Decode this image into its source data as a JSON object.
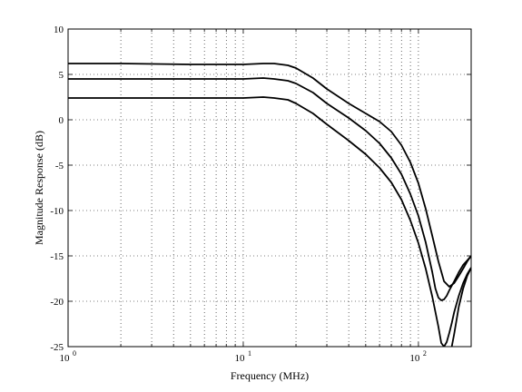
{
  "chart_data": {
    "type": "line",
    "title": "",
    "xlabel": "Frequency (MHz)",
    "ylabel": "Magnitude Response (dB)",
    "xscale": "log",
    "xlim": [
      1,
      200
    ],
    "ylim": [
      -25,
      10
    ],
    "grid": true,
    "grid_style": "dotted",
    "line_color": "#000000",
    "x_ticks": [
      {
        "base": "10",
        "exp": "0",
        "value": 1
      },
      {
        "base": "10",
        "exp": "1",
        "value": 10
      },
      {
        "base": "10",
        "exp": "2",
        "value": 100
      }
    ],
    "y_ticks": [
      "10",
      "5",
      "0",
      "-5",
      "-10",
      "-15",
      "-20",
      "-25"
    ],
    "series": [
      {
        "x": [
          1,
          2,
          5,
          10,
          13,
          15,
          18,
          20,
          25,
          30,
          40,
          50,
          60,
          70,
          80,
          90,
          100,
          110,
          120,
          130,
          140,
          150,
          160,
          170,
          180,
          190,
          200
        ],
        "y": [
          6.2,
          6.2,
          6.1,
          6.1,
          6.2,
          6.2,
          6.0,
          5.7,
          4.6,
          3.4,
          1.8,
          0.7,
          -0.2,
          -1.3,
          -2.8,
          -4.7,
          -7.0,
          -9.8,
          -12.8,
          -15.6,
          -17.8,
          -18.4,
          -18.0,
          -17.2,
          -16.4,
          -15.6,
          -15.0
        ]
      },
      {
        "x": [
          1,
          2,
          5,
          10,
          13,
          15,
          18,
          20,
          25,
          30,
          40,
          50,
          60,
          70,
          80,
          90,
          100,
          110,
          120,
          125,
          130,
          135,
          140,
          145,
          150,
          160,
          170,
          180,
          190,
          200
        ],
        "y": [
          4.5,
          4.5,
          4.5,
          4.5,
          4.6,
          4.5,
          4.3,
          4.0,
          3.0,
          1.8,
          0.2,
          -1.2,
          -2.6,
          -4.2,
          -6.0,
          -8.2,
          -10.6,
          -13.5,
          -16.8,
          -18.6,
          -19.6,
          -19.9,
          -19.8,
          -19.4,
          -18.8,
          -17.8,
          -16.8,
          -16.0,
          -15.5,
          -15.0
        ]
      },
      {
        "x": [
          1,
          2,
          5,
          10,
          13,
          15,
          18,
          20,
          25,
          30,
          40,
          50,
          60,
          70,
          80,
          90,
          100,
          110,
          120,
          130,
          135,
          140,
          145,
          150,
          155,
          160,
          170,
          180,
          190,
          200
        ],
        "y": [
          2.4,
          2.4,
          2.4,
          2.4,
          2.5,
          2.4,
          2.2,
          1.8,
          0.7,
          -0.5,
          -2.3,
          -3.8,
          -5.3,
          -6.9,
          -8.8,
          -11.1,
          -13.6,
          -16.4,
          -19.5,
          -22.8,
          -24.6,
          -25.0,
          -24.5,
          -23.5,
          -22.4,
          -21.2,
          -19.4,
          -18.0,
          -17.0,
          -16.3
        ]
      },
      {
        "x": [
          155,
          160,
          170,
          180,
          190,
          200
        ],
        "y": [
          -25.0,
          -23.6,
          -20.6,
          -18.6,
          -17.2,
          -16.3
        ]
      }
    ]
  }
}
